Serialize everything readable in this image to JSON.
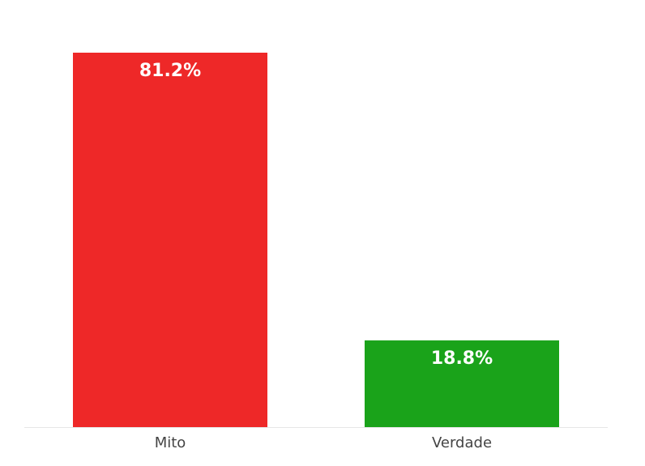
{
  "chart_data": {
    "type": "bar",
    "categories": [
      "Mito",
      "Verdade"
    ],
    "values": [
      81.2,
      18.8
    ],
    "value_labels": [
      "81.2%",
      "18.8%"
    ],
    "colors": [
      "#ee2828",
      "#1aa31a"
    ]
  }
}
